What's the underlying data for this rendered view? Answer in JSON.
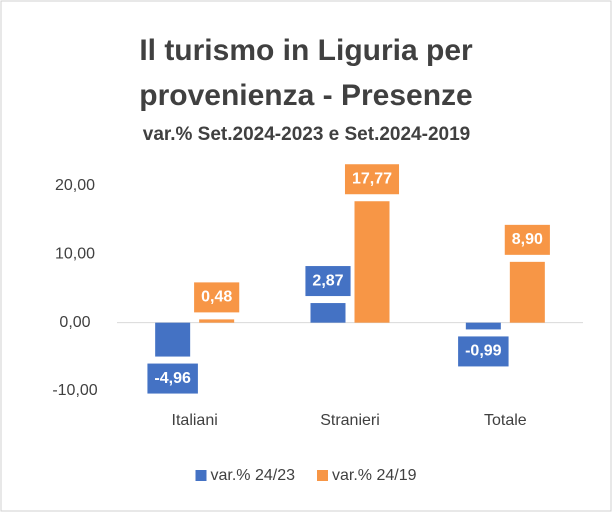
{
  "chart_data": {
    "type": "bar",
    "title": "Il turismo in Liguria per provenienza - Presenze",
    "subtitle": "var.% Set.2024-2023 e Set.2024-2019",
    "categories": [
      "Italiani",
      "Stranieri",
      "Totale"
    ],
    "series": [
      {
        "name": "var.% 24/23",
        "color": "#4472c4",
        "values": [
          -4.96,
          2.87,
          -0.99
        ],
        "value_labels": [
          "-4,96",
          "2,87",
          "-0,99"
        ]
      },
      {
        "name": "var.% 24/19",
        "color": "#f79646",
        "values": [
          0.48,
          17.77,
          8.9
        ],
        "value_labels": [
          "0,48",
          "17,77",
          "8,90"
        ]
      }
    ],
    "ylim": [
      -10,
      20
    ],
    "yticks": [
      {
        "value": -10,
        "label": "-10,00"
      },
      {
        "value": 0,
        "label": "0,00"
      },
      {
        "value": 10,
        "label": "10,00"
      },
      {
        "value": 20,
        "label": "20,00"
      }
    ],
    "legend": "bottom"
  }
}
